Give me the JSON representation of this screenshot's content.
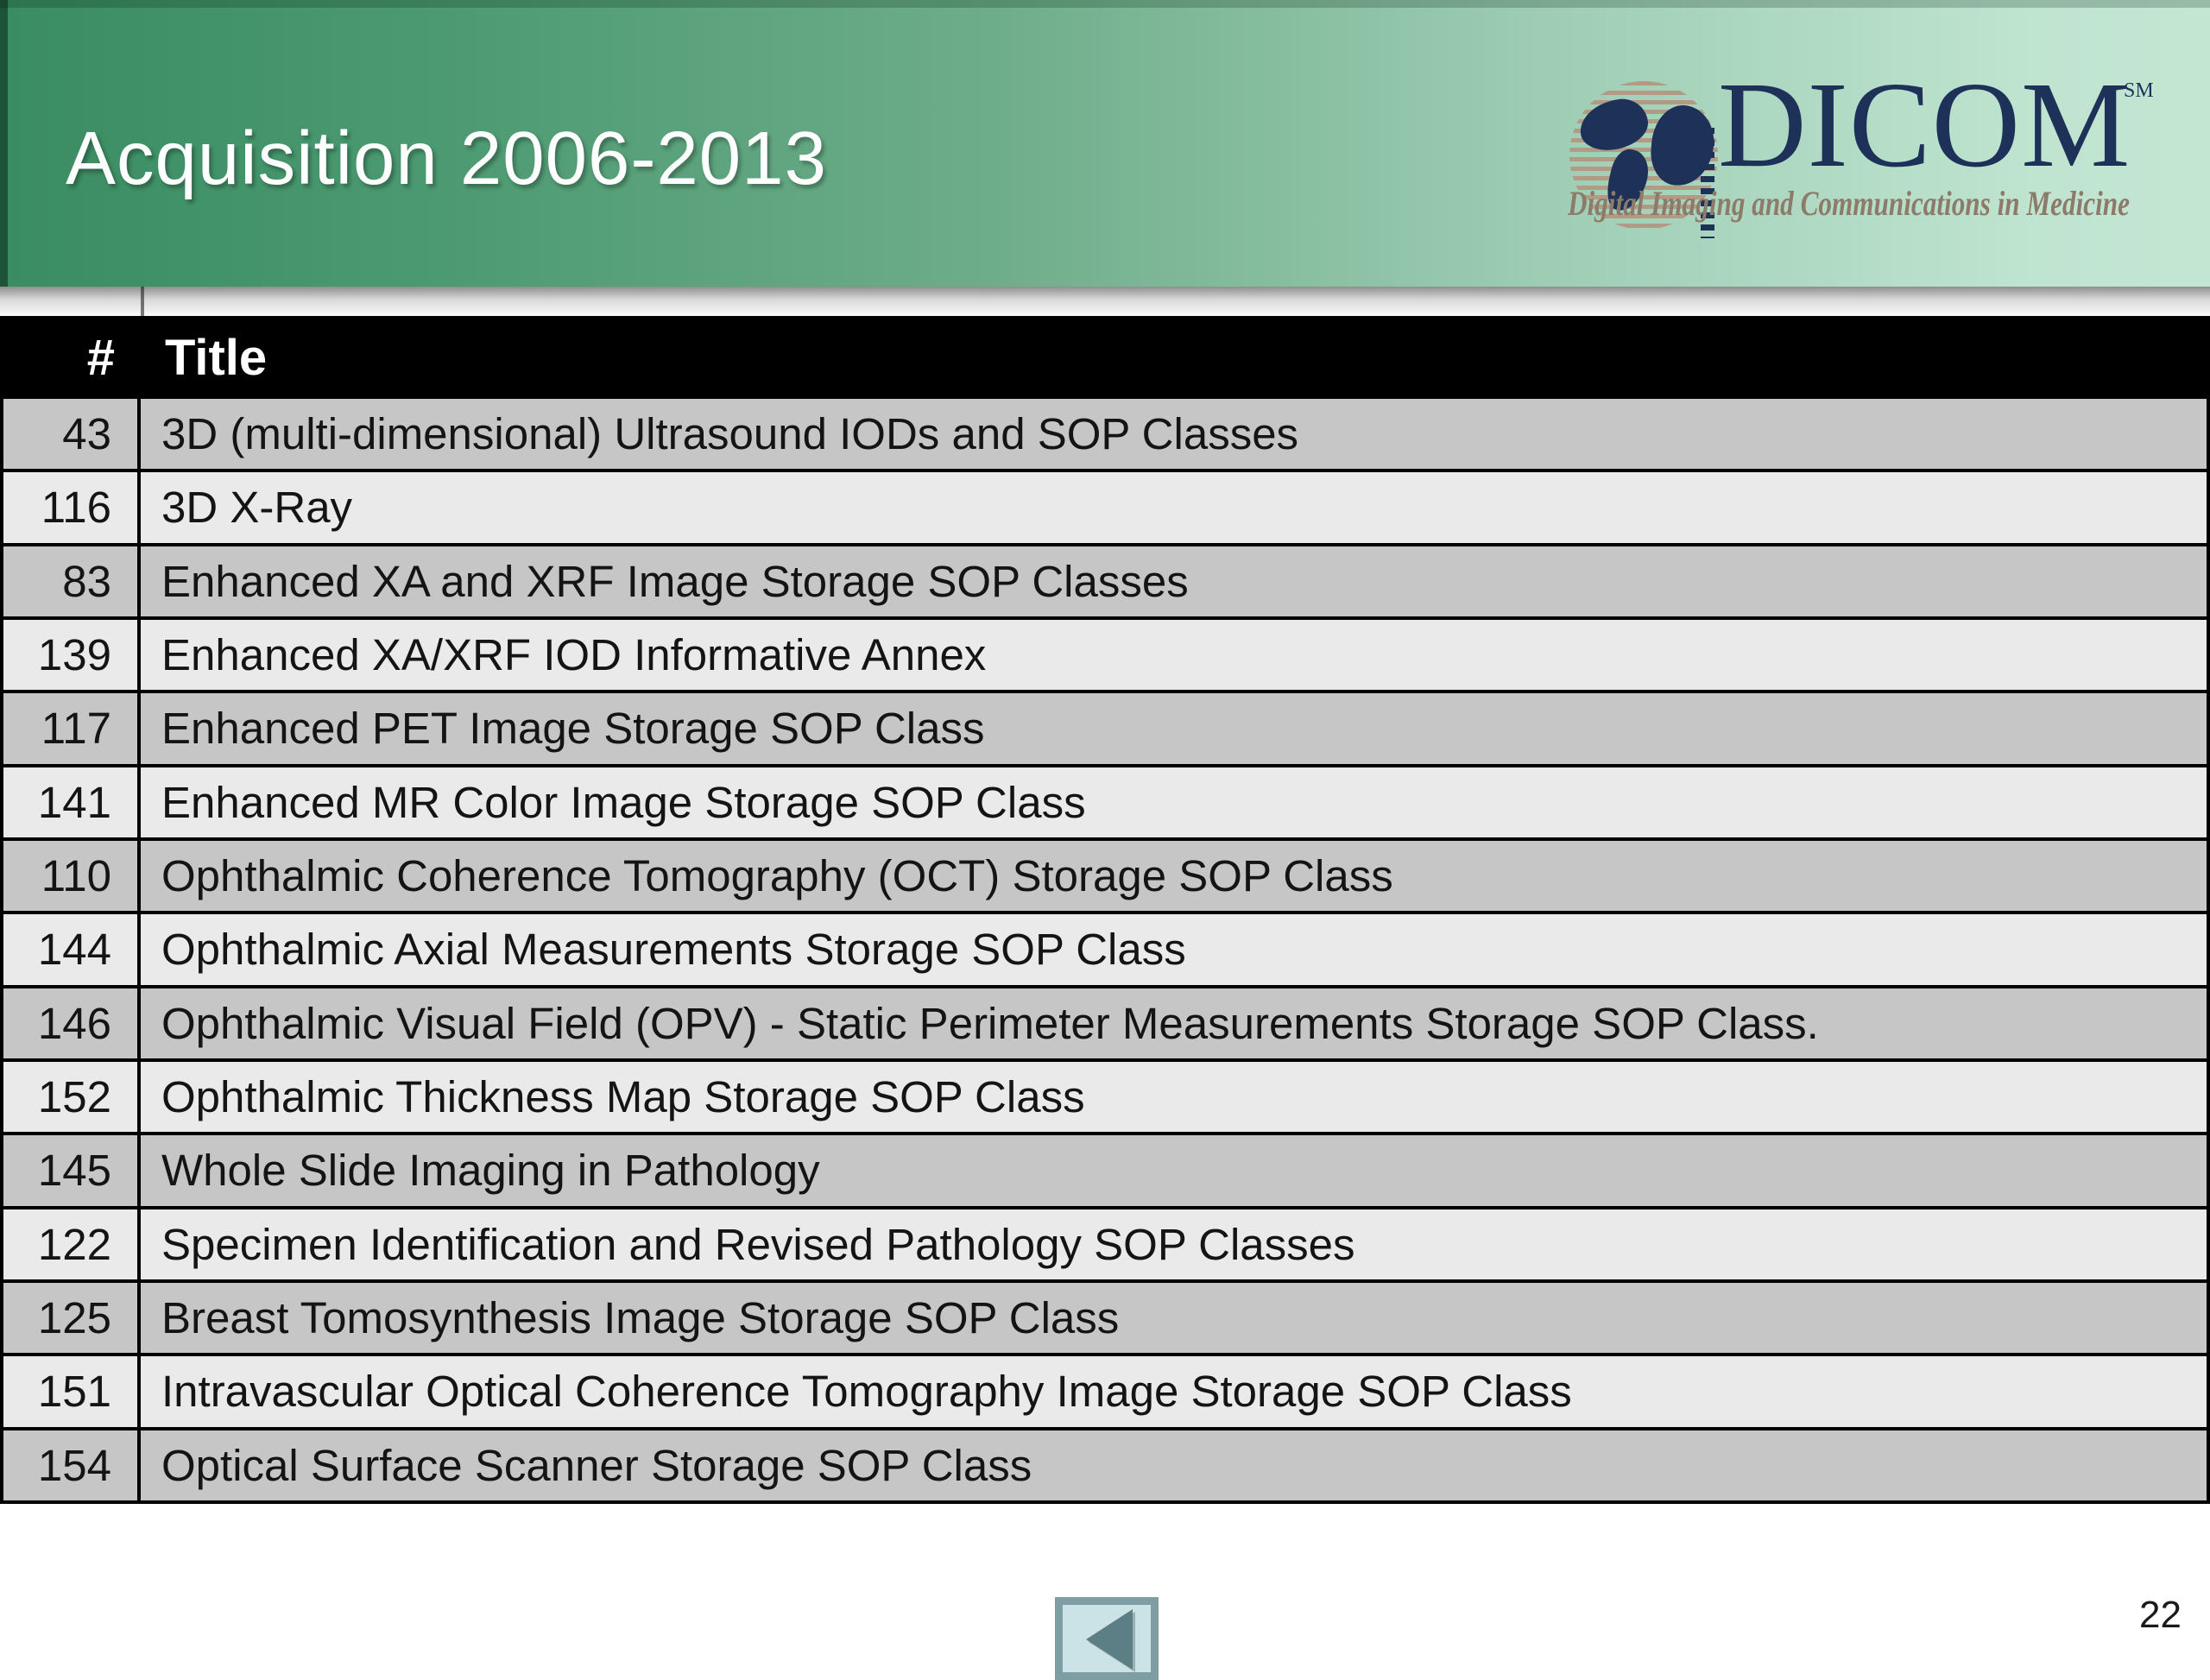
{
  "header": {
    "title": "Acquisition 2006-2013"
  },
  "logo": {
    "brand": "DICOM",
    "trademark": "SM",
    "tagline": "Digital Imaging and Communications in Medicine"
  },
  "table": {
    "columns": [
      "#",
      "Title"
    ],
    "rows": [
      {
        "num": "43",
        "title": "3D (multi-dimensional) Ultrasound IODs and SOP Classes"
      },
      {
        "num": "116",
        "title": "3D X-Ray"
      },
      {
        "num": "83",
        "title": "Enhanced XA and XRF Image Storage SOP Classes"
      },
      {
        "num": "139",
        "title": "Enhanced XA/XRF IOD Informative Annex"
      },
      {
        "num": "117",
        "title": "Enhanced PET Image Storage SOP Class"
      },
      {
        "num": "141",
        "title": "Enhanced MR Color Image Storage SOP Class"
      },
      {
        "num": "110",
        "title": "Ophthalmic Coherence Tomography (OCT) Storage SOP Class"
      },
      {
        "num": "144",
        "title": "Ophthalmic Axial Measurements Storage SOP Class"
      },
      {
        "num": "146",
        "title": "Ophthalmic Visual Field (OPV) - Static Perimeter Measurements Storage SOP Class."
      },
      {
        "num": "152",
        "title": "Ophthalmic Thickness Map Storage SOP Class"
      },
      {
        "num": "145",
        "title": "Whole Slide Imaging in Pathology"
      },
      {
        "num": "122",
        "title": "Specimen Identification and Revised Pathology SOP Classes"
      },
      {
        "num": "125",
        "title": "Breast Tomosynthesis Image Storage SOP Class"
      },
      {
        "num": "151",
        "title": "Intravascular Optical Coherence Tomography Image Storage SOP Class"
      },
      {
        "num": "154",
        "title": "Optical Surface Scanner Storage SOP Class"
      }
    ]
  },
  "footer": {
    "page_number": "22"
  },
  "colors": {
    "header_gradient_left": "#3a8c62",
    "header_gradient_right": "#c3e6d3",
    "table_header_bg": "#000000",
    "table_header_text": "#ffffff",
    "row_dark": "#c5c6c5",
    "row_light": "#eaeaea",
    "row_border": "#000000",
    "logo_navy": "#1d3159",
    "logo_tan": "#b29b84",
    "tagline_brown": "#8d7b6a",
    "button_border": "#7f9ea3",
    "button_bg": "#cbe3e7",
    "button_triangle": "#5c7f86"
  }
}
